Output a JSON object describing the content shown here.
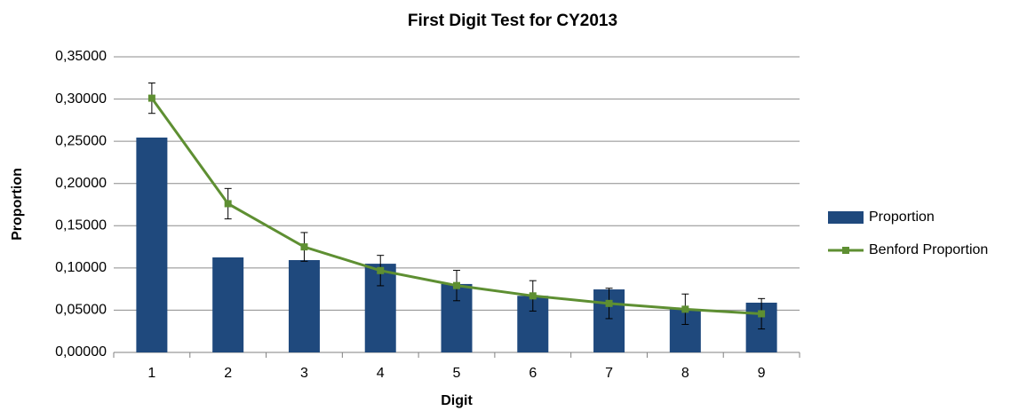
{
  "chart_data": {
    "type": "bar_line",
    "title": "First Digit Test for CY2013",
    "xlabel": "Digit",
    "ylabel": "Proportion",
    "categories": [
      "1",
      "2",
      "3",
      "4",
      "5",
      "6",
      "7",
      "8",
      "9"
    ],
    "series": [
      {
        "name": "Proportion",
        "type": "bar",
        "color": "#1f497d",
        "values": [
          0.2544,
          0.1125,
          0.1093,
          0.105,
          0.081,
          0.067,
          0.0746,
          0.0515,
          0.0589
        ]
      },
      {
        "name": "Benford Proportion",
        "type": "line",
        "color": "#5e8f32",
        "values": [
          0.30103,
          0.17609,
          0.12494,
          0.09691,
          0.07918,
          0.06695,
          0.05799,
          0.05115,
          0.04576
        ],
        "errors": [
          0.018,
          0.018,
          0.017,
          0.018,
          0.018,
          0.018,
          0.018,
          0.018,
          0.018
        ]
      }
    ],
    "ylim": [
      0,
      0.35
    ],
    "yticks": [
      {
        "value": 0,
        "label": "0,00000"
      },
      {
        "value": 0.05,
        "label": "0,05000"
      },
      {
        "value": 0.1,
        "label": "0,10000"
      },
      {
        "value": 0.15,
        "label": "0,15000"
      },
      {
        "value": 0.2,
        "label": "0,20000"
      },
      {
        "value": 0.25,
        "label": "0,25000"
      },
      {
        "value": 0.3,
        "label": "0,30000"
      },
      {
        "value": 0.35,
        "label": "0,35000"
      }
    ],
    "grid": true,
    "legend": "right"
  }
}
